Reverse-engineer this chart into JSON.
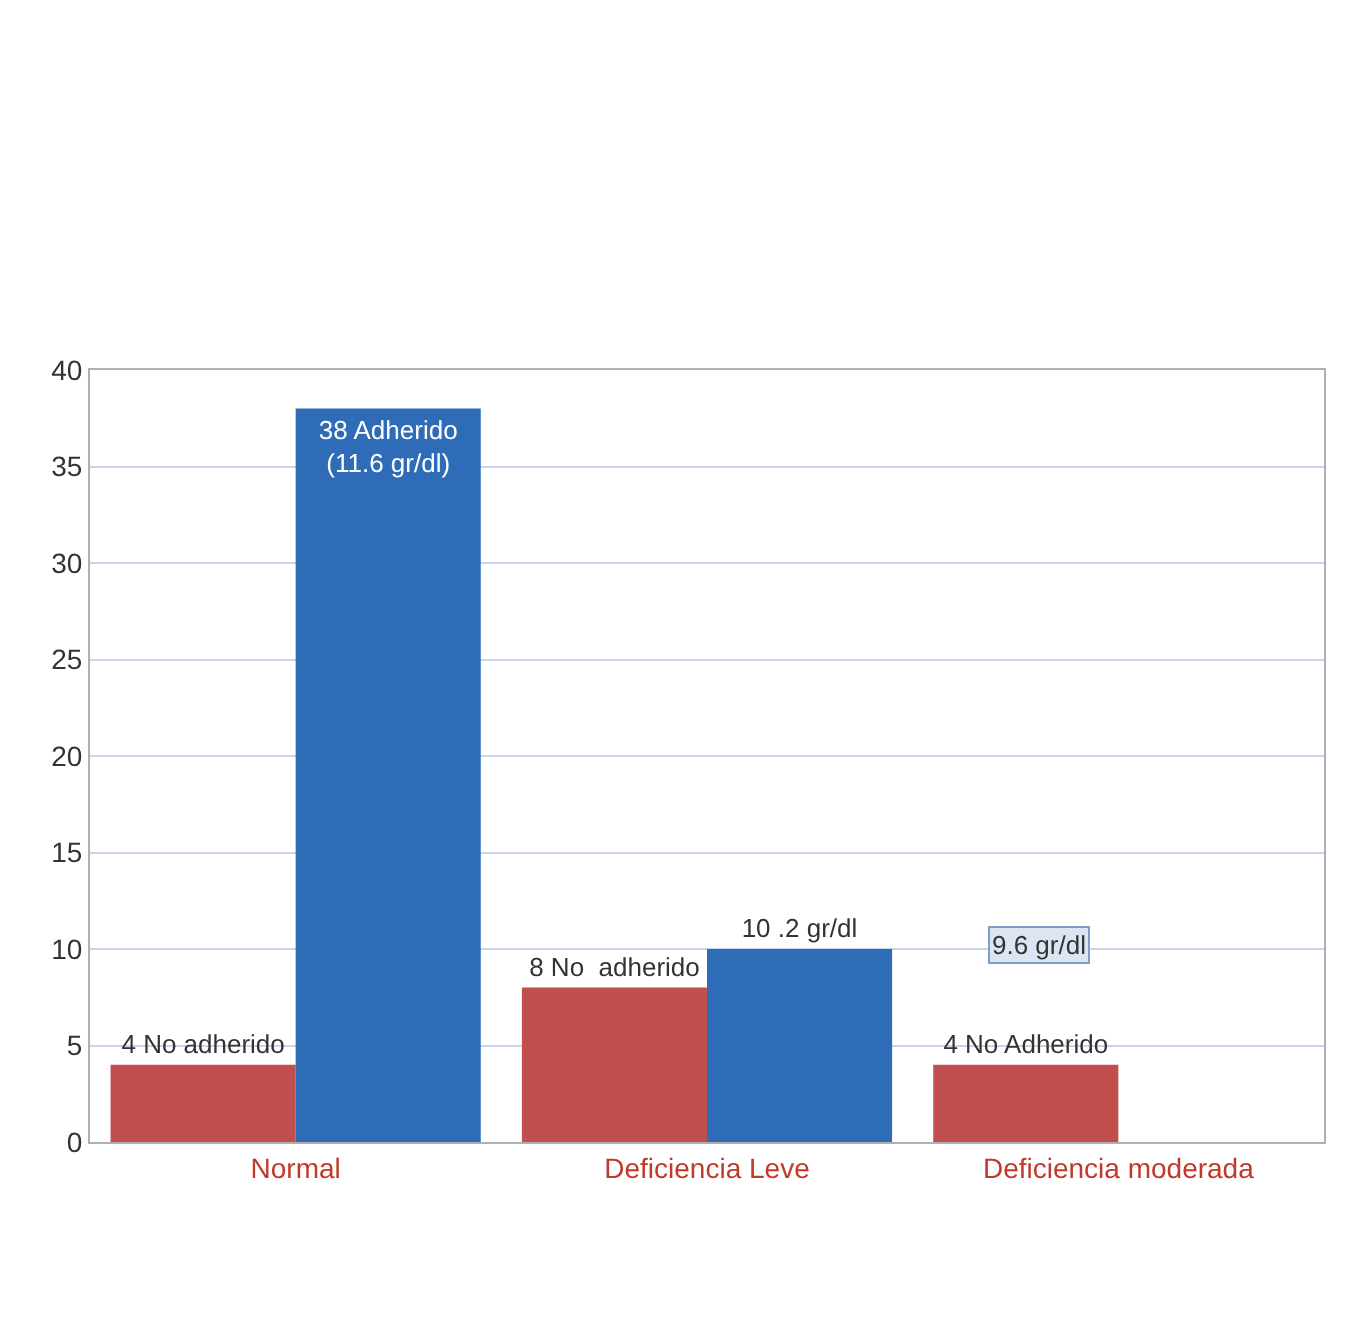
{
  "chart_data": {
    "type": "bar",
    "categories": [
      "Normal",
      "Deficiencia Leve",
      "Deficiencia moderada"
    ],
    "series": [
      {
        "color": "#c0504d",
        "values": [
          4,
          8,
          4
        ],
        "value_labels": [
          "4 No adherido",
          "8 No  adherido",
          "4 No Adherido"
        ]
      },
      {
        "color": "#2f6cb8",
        "values": [
          38,
          10,
          null
        ],
        "value_labels": [
          "38 Adherido\n(11.6 gr/dl)",
          "10 .2 gr/dl",
          null
        ]
      }
    ],
    "annotations": [
      "9.6 gr/dl"
    ],
    "ylim": [
      0,
      40
    ],
    "yticks": [
      0,
      5,
      10,
      15,
      20,
      25,
      30,
      35,
      40
    ],
    "grid": "y"
  }
}
